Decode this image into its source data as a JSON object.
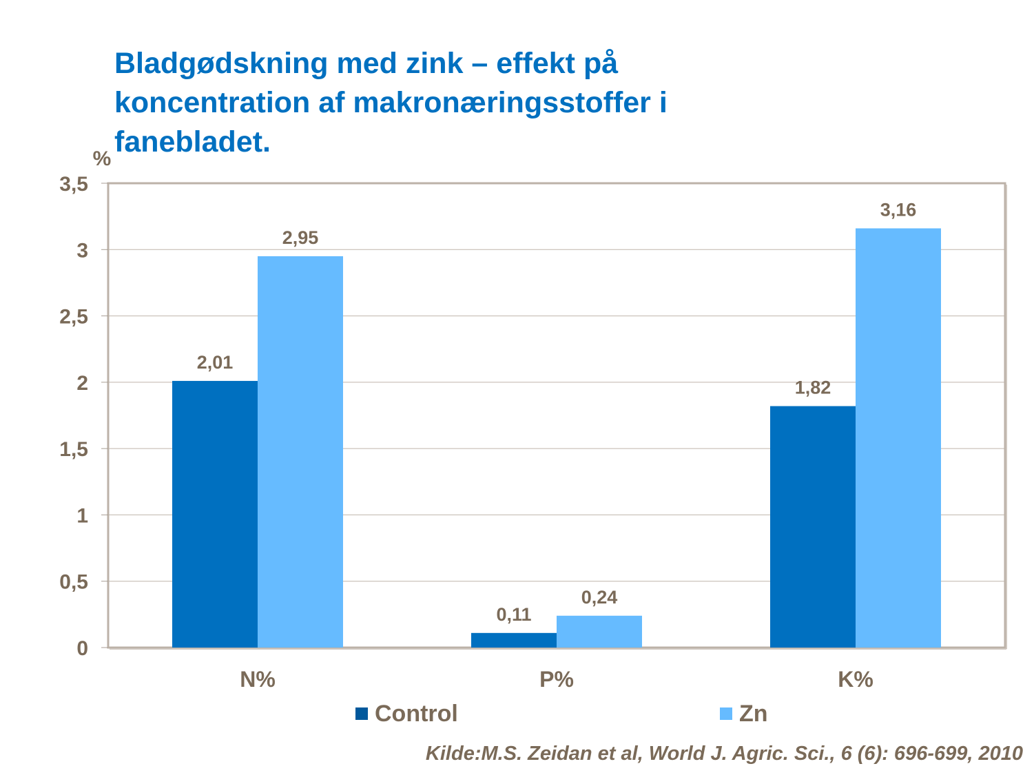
{
  "chart_data": {
    "type": "bar",
    "title": "Bladgødskning med zink – effekt på koncentration af makronæringsstoffer i fanebladet.",
    "ylabel": "%",
    "xlabel": "",
    "categories": [
      "N%",
      "P%",
      "K%"
    ],
    "series": [
      {
        "name": "Control",
        "color": "#0070C0",
        "values": [
          2.01,
          0.11,
          1.82
        ],
        "labels": [
          "2,01",
          "0,11",
          "1,82"
        ]
      },
      {
        "name": "Zn",
        "color": "#66BBFF",
        "values": [
          2.95,
          0.24,
          3.16
        ],
        "labels": [
          "2,95",
          "0,24",
          "3,16"
        ]
      }
    ],
    "ylim": [
      0,
      3.5
    ],
    "yticks": [
      0,
      0.5,
      1,
      1.5,
      2,
      2.5,
      3,
      3.5
    ],
    "ytick_labels": [
      "0",
      "0,5",
      "1",
      "1,5",
      "2",
      "2,5",
      "3",
      "3,5"
    ],
    "grid": true,
    "legend": "bottom"
  },
  "source": "Kilde:M.S. Zeidan et al, World J. Agric. Sci., 6 (6): 696-699, 2010",
  "colors": {
    "title": "#0070C0",
    "text": "#7A6A58",
    "frame": "#BCB2A8"
  }
}
